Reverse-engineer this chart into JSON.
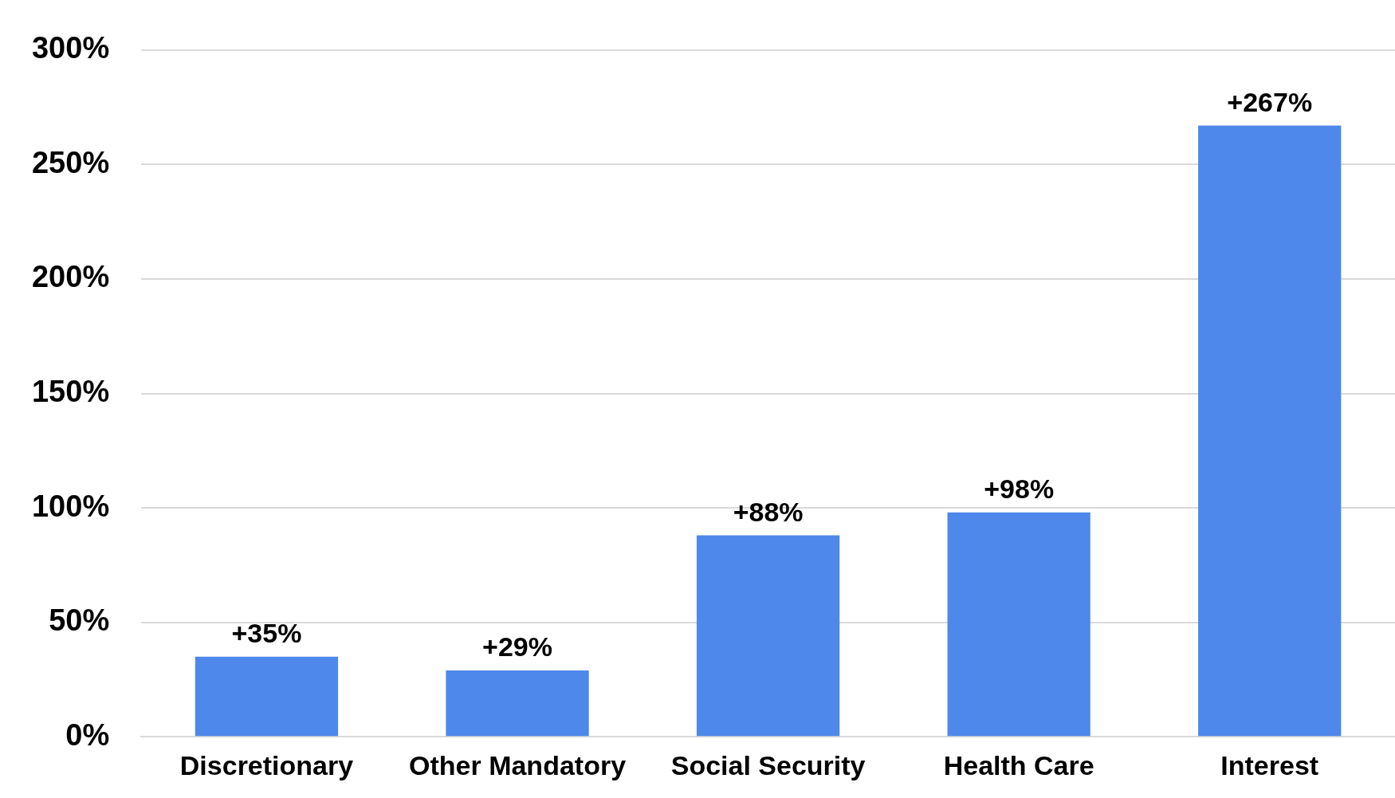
{
  "chart_data": {
    "type": "bar",
    "categories": [
      "Discretionary",
      "Other Mandatory",
      "Social Security",
      "Health Care",
      "Interest"
    ],
    "values": [
      35,
      29,
      88,
      98,
      267
    ],
    "value_labels": [
      "+35%",
      "+29%",
      "+88%",
      "+98%",
      "+267%"
    ],
    "color": "#4e88ea",
    "ylim": [
      0,
      300
    ],
    "yticks": [
      {
        "value": 0,
        "label": "0%"
      },
      {
        "value": 50,
        "label": "50%"
      },
      {
        "value": 100,
        "label": "100%"
      },
      {
        "value": 150,
        "label": "150%"
      },
      {
        "value": 200,
        "label": "200%"
      },
      {
        "value": 250,
        "label": "250%"
      },
      {
        "value": 300,
        "label": "300%"
      }
    ],
    "grid": "y",
    "legend": false
  }
}
